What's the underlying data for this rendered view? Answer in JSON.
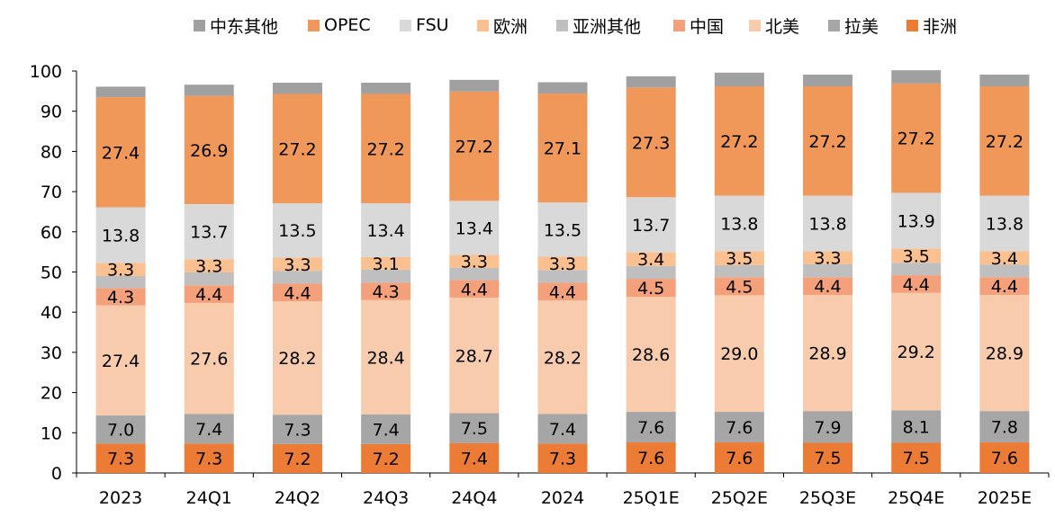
{
  "chart_data": {
    "type": "bar",
    "stacked": true,
    "categories": [
      "2023",
      "24Q1",
      "24Q2",
      "24Q3",
      "24Q4",
      "2024",
      "25Q1E",
      "25Q2E",
      "25Q3E",
      "25Q4E",
      "2025E"
    ],
    "ylim": [
      0,
      100
    ],
    "yticks": [
      0,
      10,
      20,
      30,
      40,
      50,
      60,
      70,
      80,
      90,
      100
    ],
    "grid": false,
    "legend_position": "top",
    "legend_order": [
      "中东其他",
      "OPEC",
      "FSU",
      "欧洲",
      "亚洲其他",
      "中国",
      "北美",
      "拉美",
      "非洲"
    ],
    "series": [
      {
        "name": "非洲",
        "color": "#ec7c35",
        "values": [
          7.3,
          7.3,
          7.2,
          7.2,
          7.4,
          7.3,
          7.6,
          7.6,
          7.5,
          7.5,
          7.6
        ]
      },
      {
        "name": "拉美",
        "color": "#a6a6a6",
        "values": [
          7.0,
          7.4,
          7.3,
          7.4,
          7.5,
          7.4,
          7.6,
          7.6,
          7.9,
          8.1,
          7.8
        ]
      },
      {
        "name": "北美",
        "color": "#f8cbad",
        "values": [
          27.4,
          27.6,
          28.2,
          28.4,
          28.7,
          28.2,
          28.6,
          29.0,
          28.9,
          29.2,
          28.9
        ]
      },
      {
        "name": "中国",
        "color": "#f4a07a",
        "values": [
          4.3,
          4.4,
          4.4,
          4.3,
          4.4,
          4.4,
          4.5,
          4.5,
          4.4,
          4.4,
          4.4
        ]
      },
      {
        "name": "亚洲其他",
        "color": "#bfbfbf",
        "values": [
          3.0,
          3.2,
          3.2,
          3.3,
          3.0,
          3.2,
          3.2,
          3.0,
          3.2,
          3.1,
          3.1
        ]
      },
      {
        "name": "欧洲",
        "color": "#fac090",
        "values": [
          3.3,
          3.3,
          3.3,
          3.1,
          3.3,
          3.3,
          3.4,
          3.5,
          3.3,
          3.5,
          3.4
        ]
      },
      {
        "name": "FSU",
        "color": "#d9d9d9",
        "values": [
          13.8,
          13.7,
          13.5,
          13.4,
          13.4,
          13.5,
          13.7,
          13.8,
          13.8,
          13.9,
          13.8
        ]
      },
      {
        "name": "OPEC",
        "color": "#f0985a",
        "values": [
          27.4,
          26.9,
          27.2,
          27.2,
          27.2,
          27.1,
          27.3,
          27.2,
          27.2,
          27.2,
          27.2
        ]
      },
      {
        "name": "中东其他",
        "color": "#a0a0a0",
        "values": [
          2.6,
          2.8,
          2.8,
          2.8,
          2.9,
          2.8,
          2.8,
          3.4,
          2.9,
          3.3,
          2.9
        ]
      }
    ],
    "labeled_series": [
      "非洲",
      "拉美",
      "北美",
      "中国",
      "欧洲",
      "FSU",
      "OPEC"
    ]
  }
}
